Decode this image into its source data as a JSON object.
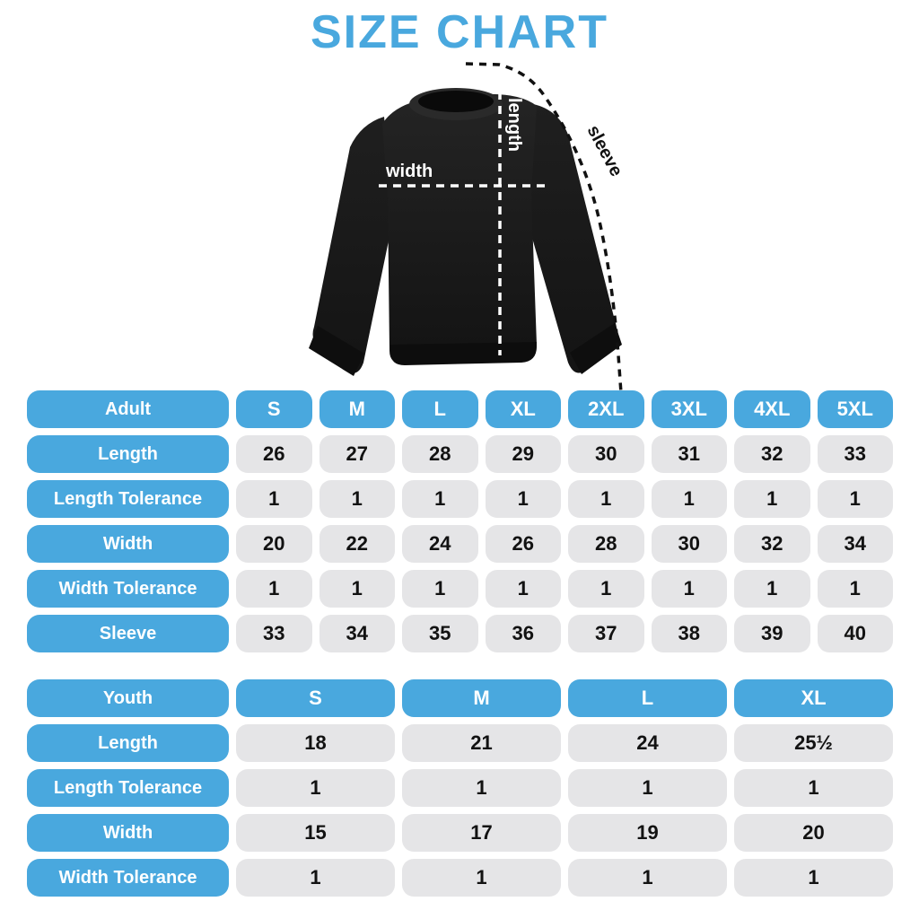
{
  "title": "SIZE CHART",
  "colors": {
    "accent": "#49A8DE",
    "cell_bg": "#E5E5E7",
    "number_text": "#121212",
    "header_text": "#FFFFFF",
    "garment": "#1A1A1A"
  },
  "diagram": {
    "garment": "black crewneck sweatshirt",
    "labels": {
      "width": "width",
      "length": "length",
      "sleeve": "sleeve"
    }
  },
  "chart_data": [
    {
      "type": "table",
      "name": "adult",
      "header": [
        "Adult",
        "S",
        "M",
        "L",
        "XL",
        "2XL",
        "3XL",
        "4XL",
        "5XL"
      ],
      "rows": [
        [
          "Length",
          "26",
          "27",
          "28",
          "29",
          "30",
          "31",
          "32",
          "33"
        ],
        [
          "Length Tolerance",
          "1",
          "1",
          "1",
          "1",
          "1",
          "1",
          "1",
          "1"
        ],
        [
          "Width",
          "20",
          "22",
          "24",
          "26",
          "28",
          "30",
          "32",
          "34"
        ],
        [
          "Width Tolerance",
          "1",
          "1",
          "1",
          "1",
          "1",
          "1",
          "1",
          "1"
        ],
        [
          "Sleeve",
          "33",
          "34",
          "35",
          "36",
          "37",
          "38",
          "39",
          "40"
        ]
      ]
    },
    {
      "type": "table",
      "name": "youth",
      "header": [
        "Youth",
        "S",
        "M",
        "L",
        "XL"
      ],
      "rows": [
        [
          "Length",
          "18",
          "21",
          "24",
          "25½"
        ],
        [
          "Length Tolerance",
          "1",
          "1",
          "1",
          "1"
        ],
        [
          "Width",
          "15",
          "17",
          "19",
          "20"
        ],
        [
          "Width Tolerance",
          "1",
          "1",
          "1",
          "1"
        ]
      ]
    }
  ]
}
